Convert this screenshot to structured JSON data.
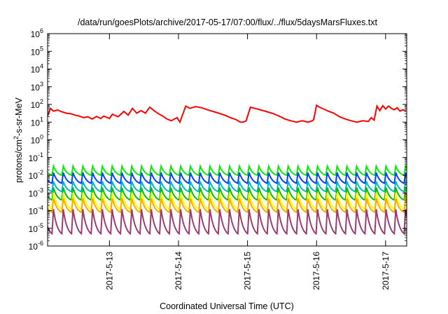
{
  "chart_data": {
    "type": "line",
    "title": "/data/run/goesPlots/archive/2017-05-17/07:00/flux/../flux/5daysMarsFluxes.txt",
    "xlabel": "Coordinated Universal Time (UTC)",
    "ylabel_main": "protons/cm",
    "ylabel_sup": "2",
    "ylabel_tail": "-s-sr-MeV",
    "yscale": "log",
    "ylim": [
      1e-06,
      1000000.0
    ],
    "xlim": [
      "2017-05-12T02:30",
      "2017-05-17T07:20"
    ],
    "grid": false,
    "legend": "none",
    "y_ticks": [
      {
        "value": 1e-06,
        "base": "10",
        "exp": "-6"
      },
      {
        "value": 1e-05,
        "base": "10",
        "exp": "-5"
      },
      {
        "value": 0.0001,
        "base": "10",
        "exp": "-4"
      },
      {
        "value": 0.001,
        "base": "10",
        "exp": "-3"
      },
      {
        "value": 0.01,
        "base": "10",
        "exp": "-2"
      },
      {
        "value": 0.1,
        "base": "10",
        "exp": "-1"
      },
      {
        "value": 1.0,
        "base": "10",
        "exp": "0"
      },
      {
        "value": 10.0,
        "base": "10",
        "exp": "1"
      },
      {
        "value": 100.0,
        "base": "10",
        "exp": "2"
      },
      {
        "value": 1000.0,
        "base": "10",
        "exp": "3"
      },
      {
        "value": 10000.0,
        "base": "10",
        "exp": "4"
      },
      {
        "value": 100000.0,
        "base": "10",
        "exp": "5"
      },
      {
        "value": 1000000.0,
        "base": "10",
        "exp": "6"
      }
    ],
    "x_ticks": [
      {
        "value": "2017-05-13T00:00",
        "label": "2017-5-13"
      },
      {
        "value": "2017-05-14T00:00",
        "label": "2017-5-14"
      },
      {
        "value": "2017-05-15T00:00",
        "label": "2017-5-15"
      },
      {
        "value": "2017-05-16T00:00",
        "label": "2017-5-16"
      },
      {
        "value": "2017-05-17T00:00",
        "label": "2017-5-17"
      }
    ],
    "series": [
      {
        "color": "#ff0000",
        "x": [
          "2017-05-12T02:30",
          "2017-05-12T03:30",
          "2017-05-12T04:30",
          "2017-05-12T06:00",
          "2017-05-12T07:30",
          "2017-05-12T09:00",
          "2017-05-12T10:30",
          "2017-05-12T12:00",
          "2017-05-12T13:30",
          "2017-05-12T15:00",
          "2017-05-12T16:30",
          "2017-05-12T18:00",
          "2017-05-12T19:30",
          "2017-05-12T21:00",
          "2017-05-12T22:00",
          "2017-05-13T00:00",
          "2017-05-13T01:00",
          "2017-05-13T03:00",
          "2017-05-13T05:00",
          "2017-05-13T06:30",
          "2017-05-13T08:00",
          "2017-05-13T09:30",
          "2017-05-13T11:00",
          "2017-05-13T12:30",
          "2017-05-13T14:00",
          "2017-05-13T15:30",
          "2017-05-13T17:00",
          "2017-05-13T18:30",
          "2017-05-13T20:00",
          "2017-05-13T21:30",
          "2017-05-13T23:30",
          "2017-05-14T00:30",
          "2017-05-14T02:30",
          "2017-05-14T04:00",
          "2017-05-14T06:00",
          "2017-05-14T08:00",
          "2017-05-14T10:00",
          "2017-05-14T12:00",
          "2017-05-14T14:00",
          "2017-05-14T16:00",
          "2017-05-14T18:00",
          "2017-05-14T20:00",
          "2017-05-14T21:30",
          "2017-05-14T22:30",
          "2017-05-14T23:30",
          "2017-05-15T01:00",
          "2017-05-15T03:30",
          "2017-05-15T06:00",
          "2017-05-15T08:30",
          "2017-05-15T11:00",
          "2017-05-15T13:00",
          "2017-05-15T15:00",
          "2017-05-15T17:00",
          "2017-05-15T19:00",
          "2017-05-15T21:00",
          "2017-05-15T22:30",
          "2017-05-15T23:00",
          "2017-05-16T00:00",
          "2017-05-16T01:00",
          "2017-05-16T02:30",
          "2017-05-16T04:00",
          "2017-05-16T06:00",
          "2017-05-16T08:00",
          "2017-05-16T10:00",
          "2017-05-16T12:00",
          "2017-05-16T14:00",
          "2017-05-16T16:00",
          "2017-05-16T18:00",
          "2017-05-16T19:00",
          "2017-05-16T20:00",
          "2017-05-16T21:00",
          "2017-05-16T22:00",
          "2017-05-16T23:00",
          "2017-05-17T00:00",
          "2017-05-17T01:00",
          "2017-05-17T02:00",
          "2017-05-17T03:00",
          "2017-05-17T04:00",
          "2017-05-17T05:00",
          "2017-05-17T06:00",
          "2017-05-17T07:00"
        ],
        "y": [
          22,
          60,
          42,
          48,
          38,
          32,
          30,
          25,
          22,
          18,
          20,
          15,
          21,
          16,
          22,
          16,
          28,
          20,
          40,
          25,
          60,
          32,
          45,
          32,
          70,
          45,
          30,
          22,
          15,
          12,
          18,
          10,
          80,
          60,
          75,
          65,
          50,
          40,
          32,
          25,
          18,
          14,
          10,
          10,
          12,
          70,
          55,
          42,
          32,
          22,
          15,
          12,
          10,
          12,
          10,
          12,
          14,
          90,
          70,
          55,
          42,
          32,
          20,
          15,
          12,
          10,
          12,
          11,
          18,
          13,
          80,
          45,
          85,
          55,
          80,
          60,
          50,
          65,
          42,
          50,
          42
        ]
      }
    ],
    "band_series": [
      {
        "color": "#00ee00",
        "peak": 0.032,
        "trough": 0.01
      },
      {
        "color": "#0040ff",
        "peak": 0.014,
        "trough": 0.0035
      },
      {
        "color": "#00b8c0",
        "peak": 0.0045,
        "trough": 0.0012
      },
      {
        "color": "#00c000",
        "peak": 0.002,
        "trough": 0.0004
      },
      {
        "color": "#ffff00",
        "peak": 0.001,
        "trough": 0.00012
      },
      {
        "color": "#ffaa00",
        "peak": 0.0005,
        "trough": 8e-05
      },
      {
        "color": "#9b3a6e",
        "peak": 0.00012,
        "trough": 5e-06
      }
    ],
    "band_period_hours": 3.4
  }
}
